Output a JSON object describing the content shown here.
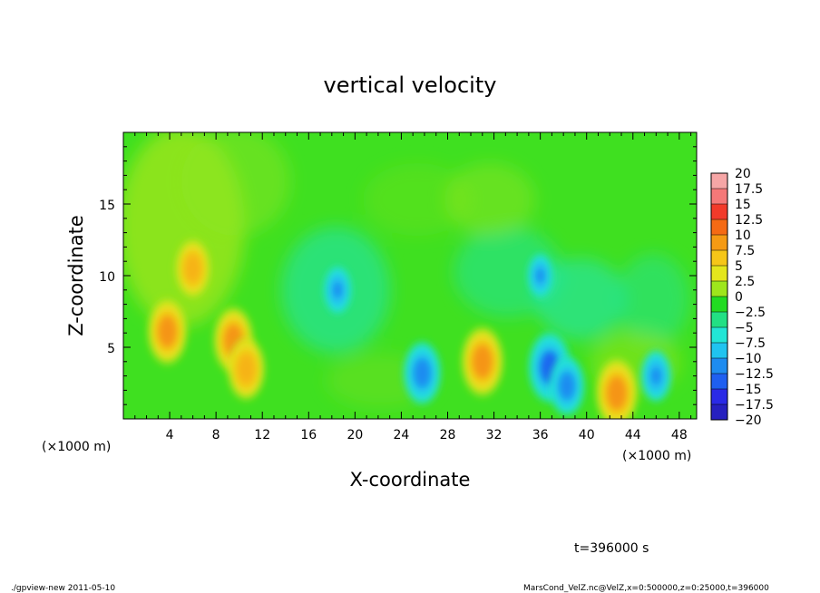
{
  "chart_data": {
    "type": "heatmap",
    "title": "vertical velocity",
    "xlabel": "X-coordinate",
    "ylabel": "Z-coordinate",
    "x_unit_label": "(×1000 m)",
    "x_unit_label_right": "(×1000 m)",
    "x_ticks": [
      4,
      8,
      12,
      16,
      20,
      24,
      28,
      32,
      36,
      40,
      44,
      48
    ],
    "y_ticks": [
      5,
      10,
      15
    ],
    "xlim": [
      0,
      49.5
    ],
    "ylim": [
      0,
      20
    ],
    "colorbar": {
      "labels": [
        "20",
        "17.5",
        "15",
        "12.5",
        "10",
        "7.5",
        "5",
        "2.5",
        "0",
        "−2.5",
        "−5",
        "−7.5",
        "−10",
        "−12.5",
        "−15",
        "−17.5",
        "−20"
      ],
      "colors": [
        "#f6a6a6",
        "#f57878",
        "#f23a2a",
        "#f56a14",
        "#f59a14",
        "#f6c618",
        "#e4e61c",
        "#9ee61c",
        "#22dc22",
        "#22e084",
        "#22e6d6",
        "#20c4f0",
        "#1e8cf0",
        "#1f5ff0",
        "#2a2ae6",
        "#2620bf",
        "#6f19c4"
      ]
    },
    "features": [
      {
        "type": "updraft",
        "x": 3.8,
        "z": 6.1,
        "value": 10
      },
      {
        "type": "updraft",
        "x": 6.0,
        "z": 10.5,
        "value": 8
      },
      {
        "type": "updraft",
        "x": 9.5,
        "z": 5.5,
        "value": 10
      },
      {
        "type": "updraft",
        "x": 10.6,
        "z": 3.5,
        "value": 9
      },
      {
        "type": "updraft",
        "x": 31.0,
        "z": 4.0,
        "value": 11
      },
      {
        "type": "updraft",
        "x": 42.6,
        "z": 1.8,
        "value": 11
      },
      {
        "type": "downdraft",
        "x": 25.8,
        "z": 3.2,
        "value": -9
      },
      {
        "type": "downdraft",
        "x": 36.8,
        "z": 3.6,
        "value": -11
      },
      {
        "type": "downdraft",
        "x": 38.3,
        "z": 2.3,
        "value": -8
      },
      {
        "type": "downdraft",
        "x": 46.0,
        "z": 3.0,
        "value": -6
      },
      {
        "type": "downdraft",
        "x": 18.5,
        "z": 9.0,
        "value": -5
      },
      {
        "type": "downdraft",
        "x": 36.0,
        "z": 10.0,
        "value": -4
      }
    ]
  },
  "annotations": {
    "time": "t=396000 s",
    "footer_left": "./gpview-new   2011-05-10",
    "footer_right": "MarsCond_VelZ.nc@VelZ,x=0:500000,z=0:25000,t=396000"
  }
}
